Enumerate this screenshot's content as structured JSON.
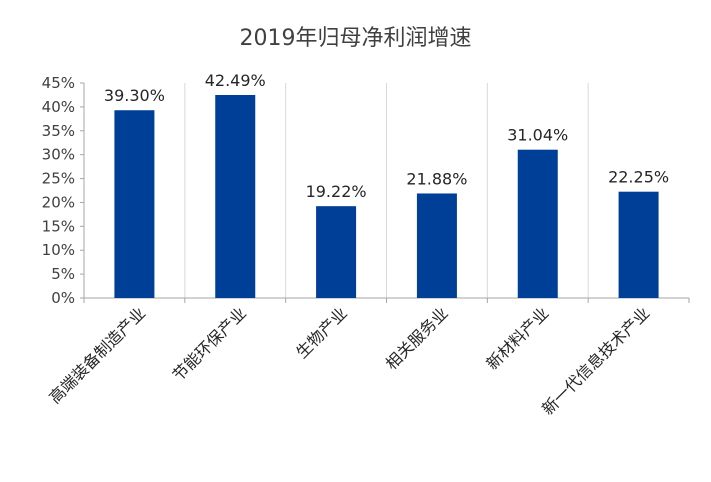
{
  "chart_data": {
    "type": "bar",
    "title": "2019年归母净利润增速",
    "categories": [
      "高端装备制造产业",
      "节能环保产业",
      "生物产业",
      "相关服务业",
      "新材料产业",
      "新一代信息技术产业"
    ],
    "values": [
      39.3,
      42.49,
      19.22,
      21.88,
      31.04,
      22.25
    ],
    "value_labels": [
      "39.30%",
      "42.49%",
      "19.22%",
      "21.88%",
      "31.04%",
      "22.25%"
    ],
    "y_ticks": [
      "0%",
      "5%",
      "10%",
      "15%",
      "20%",
      "25%",
      "30%",
      "35%",
      "40%",
      "45%"
    ],
    "ylim": [
      0,
      45
    ],
    "xlabel": "",
    "ylabel": "",
    "bar_color": "#003F98",
    "grid": "vertical-separators"
  }
}
